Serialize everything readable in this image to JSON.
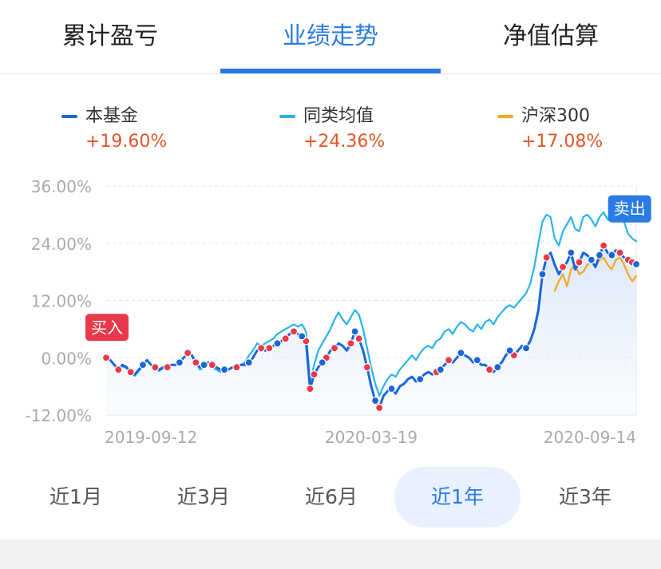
{
  "tabs": [
    {
      "label": "累计盈亏",
      "active": false
    },
    {
      "label": "业绩走势",
      "active": true
    },
    {
      "label": "净值估算",
      "active": false
    }
  ],
  "legend": [
    {
      "name": "本基金",
      "value": "+19.60%",
      "color": "#1a66d9"
    },
    {
      "name": "同类均值",
      "value": "+24.36%",
      "color": "#29b3ec"
    },
    {
      "name": "沪深300",
      "value": "+17.08%",
      "color": "#f5a623"
    }
  ],
  "value_color": "#e0582a",
  "chart_data": {
    "type": "line",
    "title": "",
    "xlabel": "",
    "ylabel": "",
    "ylim": [
      -12,
      36
    ],
    "yticks": [
      36,
      24,
      12,
      0,
      -12
    ],
    "ytick_labels": [
      "36.00%",
      "24.00%",
      "12.00%",
      "0.00%",
      "-12.00%"
    ],
    "xtick_labels": [
      {
        "label": "2019-09-12",
        "index": 0
      },
      {
        "label": "2020-03-19",
        "index": 65
      },
      {
        "label": "2020-09-14",
        "index": 130
      }
    ],
    "grid": true,
    "series": [
      {
        "name": "本基金",
        "color": "#1a66d9",
        "values": [
          0.0,
          -0.5,
          -1.5,
          -2.5,
          -1.5,
          -2.0,
          -3.0,
          -3.5,
          -2.5,
          -1.5,
          -0.5,
          -1.5,
          -2.0,
          -2.5,
          -2.0,
          -2.0,
          -1.5,
          -1.5,
          -1.0,
          0.0,
          1.0,
          0.5,
          -1.0,
          -2.0,
          -1.5,
          -1.0,
          -1.5,
          -2.0,
          -2.5,
          -2.5,
          -2.5,
          -2.0,
          -2.0,
          -1.5,
          -1.5,
          -1.0,
          0.0,
          1.5,
          2.0,
          1.5,
          2.0,
          2.5,
          3.0,
          3.5,
          4.0,
          5.0,
          5.5,
          5.0,
          4.5,
          3.5,
          -6.5,
          -3.5,
          -2.0,
          -1.0,
          0.0,
          1.5,
          2.0,
          3.0,
          2.5,
          1.5,
          3.0,
          5.5,
          4.0,
          1.5,
          -2.0,
          -6.0,
          -9.0,
          -10.5,
          -8.0,
          -7.0,
          -6.5,
          -7.5,
          -6.0,
          -5.5,
          -4.5,
          -4.0,
          -5.0,
          -4.5,
          -3.5,
          -3.0,
          -3.5,
          -3.0,
          -2.5,
          -1.5,
          -0.5,
          -1.0,
          0.0,
          1.0,
          0.5,
          0.0,
          -1.0,
          -0.5,
          -1.5,
          -1.5,
          -2.5,
          -3.0,
          -2.0,
          -1.0,
          0.5,
          1.5,
          0.5,
          1.5,
          2.5,
          2.0,
          3.5,
          6.0,
          10.0,
          17.5,
          21.0,
          22.0,
          19.5,
          17.5,
          19.0,
          20.0,
          22.0,
          18.5,
          20.0,
          22.0,
          21.5,
          20.5,
          19.0,
          21.5,
          23.5,
          22.0,
          21.5,
          22.5,
          22.0,
          21.0,
          20.5,
          20.0,
          19.6
        ]
      },
      {
        "name": "同类均值",
        "color": "#29b3ec",
        "values": [
          0.0,
          -0.5,
          -1.5,
          -2.5,
          -1.8,
          -2.2,
          -3.2,
          -3.8,
          -2.8,
          -1.8,
          -0.5,
          -1.5,
          -2.0,
          -2.8,
          -2.2,
          -2.0,
          -1.5,
          -1.5,
          -1.0,
          0.0,
          1.0,
          0.5,
          -1.0,
          -2.5,
          -2.0,
          -1.5,
          -2.0,
          -2.5,
          -3.0,
          -2.8,
          -2.5,
          -2.0,
          -1.8,
          -1.5,
          -1.0,
          0.5,
          1.5,
          3.0,
          2.5,
          3.0,
          3.5,
          4.0,
          5.0,
          5.5,
          6.0,
          6.5,
          7.0,
          6.5,
          7.0,
          5.5,
          -5.0,
          -1.5,
          1.5,
          3.0,
          4.5,
          6.0,
          8.0,
          9.5,
          8.0,
          7.0,
          8.5,
          10.0,
          9.0,
          6.0,
          2.0,
          -2.0,
          -5.5,
          -8.0,
          -6.0,
          -4.5,
          -3.5,
          -4.0,
          -2.5,
          -1.5,
          -0.5,
          0.5,
          -0.5,
          1.0,
          2.0,
          2.5,
          2.0,
          3.5,
          4.0,
          5.5,
          6.0,
          5.0,
          6.5,
          7.5,
          7.0,
          6.0,
          5.5,
          7.0,
          6.0,
          7.5,
          8.0,
          7.0,
          8.5,
          9.5,
          10.5,
          11.0,
          10.5,
          11.5,
          12.5,
          13.5,
          15.5,
          19.0,
          24.0,
          28.5,
          30.0,
          29.5,
          25.0,
          23.5,
          26.5,
          28.0,
          29.5,
          27.0,
          26.5,
          29.5,
          30.0,
          29.0,
          27.5,
          29.5,
          30.5,
          29.0,
          28.5,
          30.5,
          30.0,
          28.5,
          26.0,
          25.0,
          24.4
        ]
      },
      {
        "name": "沪深300",
        "color": "#f5a623",
        "values": [
          null,
          null,
          null,
          null,
          null,
          null,
          null,
          null,
          null,
          null,
          null,
          null,
          null,
          null,
          null,
          null,
          null,
          null,
          null,
          null,
          null,
          null,
          null,
          null,
          null,
          null,
          null,
          null,
          null,
          null,
          null,
          null,
          null,
          null,
          null,
          null,
          null,
          null,
          null,
          null,
          null,
          null,
          null,
          null,
          null,
          null,
          null,
          null,
          null,
          null,
          null,
          null,
          null,
          null,
          null,
          null,
          null,
          null,
          null,
          null,
          null,
          null,
          null,
          null,
          null,
          null,
          null,
          null,
          null,
          null,
          null,
          null,
          null,
          null,
          null,
          null,
          null,
          null,
          null,
          null,
          null,
          null,
          null,
          null,
          null,
          null,
          null,
          null,
          null,
          null,
          null,
          null,
          null,
          null,
          null,
          null,
          null,
          null,
          null,
          null,
          null,
          null,
          null,
          null,
          null,
          null,
          null,
          null,
          null,
          null,
          14.0,
          16.0,
          17.5,
          15.0,
          18.5,
          19.5,
          17.5,
          18.0,
          19.5,
          20.0,
          19.0,
          20.5,
          21.0,
          19.5,
          18.5,
          20.5,
          21.0,
          19.5,
          17.5,
          16.0,
          17.1
        ]
      }
    ],
    "markers": [
      {
        "label": "买入",
        "index": 0,
        "color": "#e8394a"
      },
      {
        "label": "卖出",
        "index": 127,
        "color": "#2a7be4"
      }
    ],
    "dots": {
      "blue_indices": [
        9,
        18,
        24,
        29,
        35,
        42,
        48,
        53,
        61,
        66,
        70,
        77,
        82,
        87,
        91,
        96,
        99,
        103,
        107,
        114,
        119,
        121,
        124,
        130
      ],
      "red_indices": [
        0,
        3,
        6,
        12,
        15,
        20,
        22,
        26,
        32,
        38,
        40,
        44,
        46,
        49,
        50,
        51,
        54,
        56,
        60,
        62,
        64,
        67,
        81,
        84,
        94,
        100,
        108,
        112,
        116,
        122,
        126,
        128,
        129
      ]
    }
  },
  "ranges": [
    {
      "label": "近1月",
      "active": false
    },
    {
      "label": "近3月",
      "active": false
    },
    {
      "label": "近6月",
      "active": false
    },
    {
      "label": "近1年",
      "active": true
    },
    {
      "label": "近3年",
      "active": false
    }
  ]
}
